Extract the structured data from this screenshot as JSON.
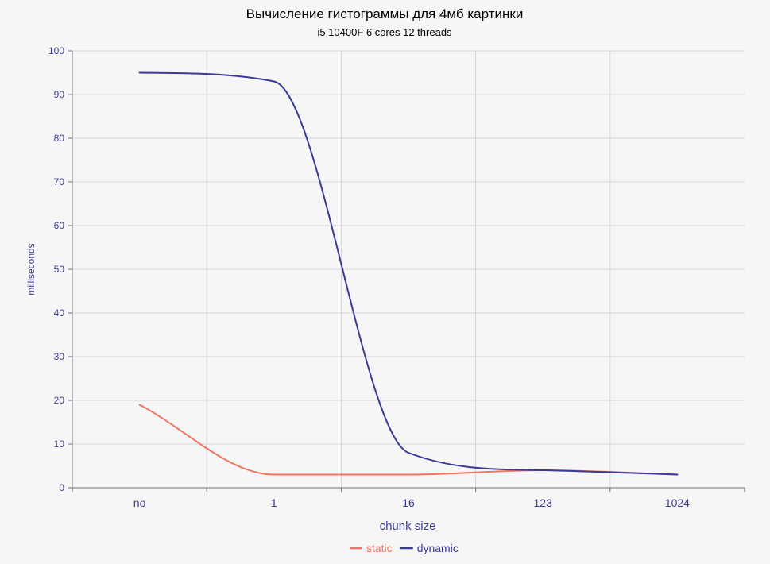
{
  "chart_data": {
    "type": "line",
    "title": "Вычисление гистограммы для 4мб картинки",
    "subtitle": "i5 10400F 6 cores 12 threads",
    "xlabel": "chunk size",
    "ylabel": "milliseconds",
    "categories": [
      "no",
      "1",
      "16",
      "123",
      "1024"
    ],
    "ylim": [
      0,
      100
    ],
    "yticks": [
      0,
      10,
      20,
      30,
      40,
      50,
      60,
      70,
      80,
      90,
      100
    ],
    "grid": true,
    "legend_position": "bottom-center",
    "smooth": true,
    "series": [
      {
        "name": "static",
        "color": "#f47462",
        "values": [
          19,
          3,
          3,
          4,
          3
        ]
      },
      {
        "name": "dynamic",
        "color": "#3a3b98",
        "values": [
          95,
          93,
          8,
          4,
          3
        ]
      }
    ],
    "colors": {
      "background": "#f6f6f6",
      "axis_text": "#3a3b98",
      "grid": "#d7d7dc",
      "axis_line": "#6e7079"
    }
  }
}
